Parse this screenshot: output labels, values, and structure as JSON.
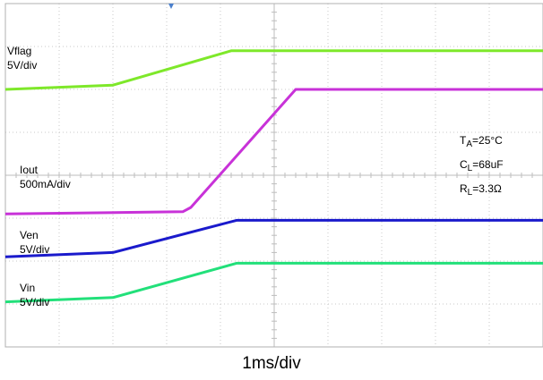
{
  "chart_data": {
    "type": "line",
    "xlabel": "1ms/div",
    "x_unit": "ms",
    "xlim": [
      0,
      10
    ],
    "y_unit": "div",
    "ylim": [
      0,
      8
    ],
    "grid": true,
    "series": [
      {
        "name": "Vflag",
        "scale": "5V/div",
        "color": "#7ee82a",
        "x": [
          0,
          2.0,
          4.2,
          10
        ],
        "y": [
          6.0,
          6.1,
          6.9,
          6.9
        ]
      },
      {
        "name": "Iout",
        "scale": "500mA/div",
        "color": "#c832d8",
        "x": [
          0,
          3.3,
          3.45,
          5.4,
          10
        ],
        "y": [
          3.1,
          3.15,
          3.25,
          6.0,
          6.0
        ]
      },
      {
        "name": "Ven",
        "scale": "5V/div",
        "color": "#1a1acc",
        "x": [
          0,
          2.0,
          4.3,
          10
        ],
        "y": [
          2.1,
          2.2,
          2.95,
          2.95
        ]
      },
      {
        "name": "Vin",
        "scale": "5V/div",
        "color": "#22e07a",
        "x": [
          0,
          2.0,
          4.3,
          10
        ],
        "y": [
          1.05,
          1.15,
          1.95,
          1.95
        ]
      }
    ],
    "annotations": {
      "ta": {
        "main": "T",
        "sub": "A",
        "rest": "=25°C"
      },
      "cl": {
        "main": "C",
        "sub": "L",
        "rest": "=68uF"
      },
      "rl": {
        "main": "R",
        "sub": "L",
        "rest": "=3.3Ω"
      }
    }
  }
}
